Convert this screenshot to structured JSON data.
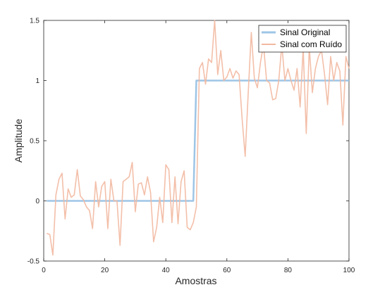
{
  "chart_data": {
    "type": "line",
    "xlabel": "Amostras",
    "ylabel": "Amplitude",
    "xlim": [
      0,
      100
    ],
    "ylim": [
      -0.5,
      1.5
    ],
    "xticks": [
      0,
      20,
      40,
      60,
      80,
      100
    ],
    "xtick_labels": [
      "0",
      "20",
      "40",
      "60",
      "80",
      "100"
    ],
    "yticks": [
      -0.5,
      0,
      0.5,
      1,
      1.5
    ],
    "ytick_labels": [
      "-0.5",
      "0",
      "0.5",
      "1",
      "1.5"
    ],
    "grid": false,
    "legend_position": "top-right",
    "x": [
      1,
      2,
      3,
      4,
      5,
      6,
      7,
      8,
      9,
      10,
      11,
      12,
      13,
      14,
      15,
      16,
      17,
      18,
      19,
      20,
      21,
      22,
      23,
      24,
      25,
      26,
      27,
      28,
      29,
      30,
      31,
      32,
      33,
      34,
      35,
      36,
      37,
      38,
      39,
      40,
      41,
      42,
      43,
      44,
      45,
      46,
      47,
      48,
      49,
      50,
      51,
      52,
      53,
      54,
      55,
      56,
      57,
      58,
      59,
      60,
      61,
      62,
      63,
      64,
      65,
      66,
      67,
      68,
      69,
      70,
      71,
      72,
      73,
      74,
      75,
      76,
      77,
      78,
      79,
      80,
      81,
      82,
      83,
      84,
      85,
      86,
      87,
      88,
      89,
      90,
      91,
      92,
      93,
      94,
      95,
      96,
      97,
      98,
      99,
      100
    ],
    "series": [
      {
        "name": "Sinal Original",
        "color": "#9ec5e6",
        "values": [
          0,
          0,
          0,
          0,
          0,
          0,
          0,
          0,
          0,
          0,
          0,
          0,
          0,
          0,
          0,
          0,
          0,
          0,
          0,
          0,
          0,
          0,
          0,
          0,
          0,
          0,
          0,
          0,
          0,
          0,
          0,
          0,
          0,
          0,
          0,
          0,
          0,
          0,
          0,
          0,
          0,
          0,
          0,
          0,
          0,
          0,
          0,
          0,
          0,
          1,
          1,
          1,
          1,
          1,
          1,
          1,
          1,
          1,
          1,
          1,
          1,
          1,
          1,
          1,
          1,
          1,
          1,
          1,
          1,
          1,
          1,
          1,
          1,
          1,
          1,
          1,
          1,
          1,
          1,
          1,
          1,
          1,
          1,
          1,
          1,
          1,
          1,
          1,
          1,
          1,
          1,
          1,
          1,
          1,
          1,
          1,
          1,
          1,
          1,
          1
        ]
      },
      {
        "name": "Sinal com Ruído",
        "color": "#f2b8a0",
        "values": [
          -0.27,
          -0.28,
          -0.45,
          0.05,
          0.18,
          0.23,
          -0.15,
          0.1,
          0.03,
          0.05,
          0.26,
          0.04,
          0.01,
          -0.05,
          -0.08,
          -0.23,
          0.16,
          -0.05,
          0.12,
          0.16,
          -0.23,
          0.18,
          0.0,
          0.0,
          -0.37,
          0.16,
          0.18,
          0.2,
          0.32,
          -0.09,
          0.14,
          0.15,
          0.05,
          0.2,
          0.07,
          -0.34,
          -0.22,
          0.03,
          -0.18,
          0.3,
          0.26,
          -0.18,
          0.2,
          -0.19,
          0.16,
          0.25,
          -0.22,
          -0.24,
          -0.18,
          -0.05,
          1.1,
          1.15,
          0.97,
          1.18,
          1.15,
          1.5,
          1.05,
          1.25,
          1.0,
          1.03,
          1.1,
          1.02,
          1.08,
          1.05,
          0.68,
          0.37,
          0.9,
          1.4,
          1.02,
          0.94,
          1.15,
          1.3,
          1.0,
          0.98,
          0.84,
          0.85,
          1.0,
          1.3,
          1.0,
          1.1,
          1.0,
          0.92,
          1.1,
          0.78,
          1.27,
          0.56,
          1.28,
          0.9,
          1.1,
          1.2,
          1.25,
          1.05,
          0.8,
          1.2,
          1.0,
          1.15,
          1.08,
          0.63,
          1.2,
          1.1
        ]
      }
    ]
  }
}
